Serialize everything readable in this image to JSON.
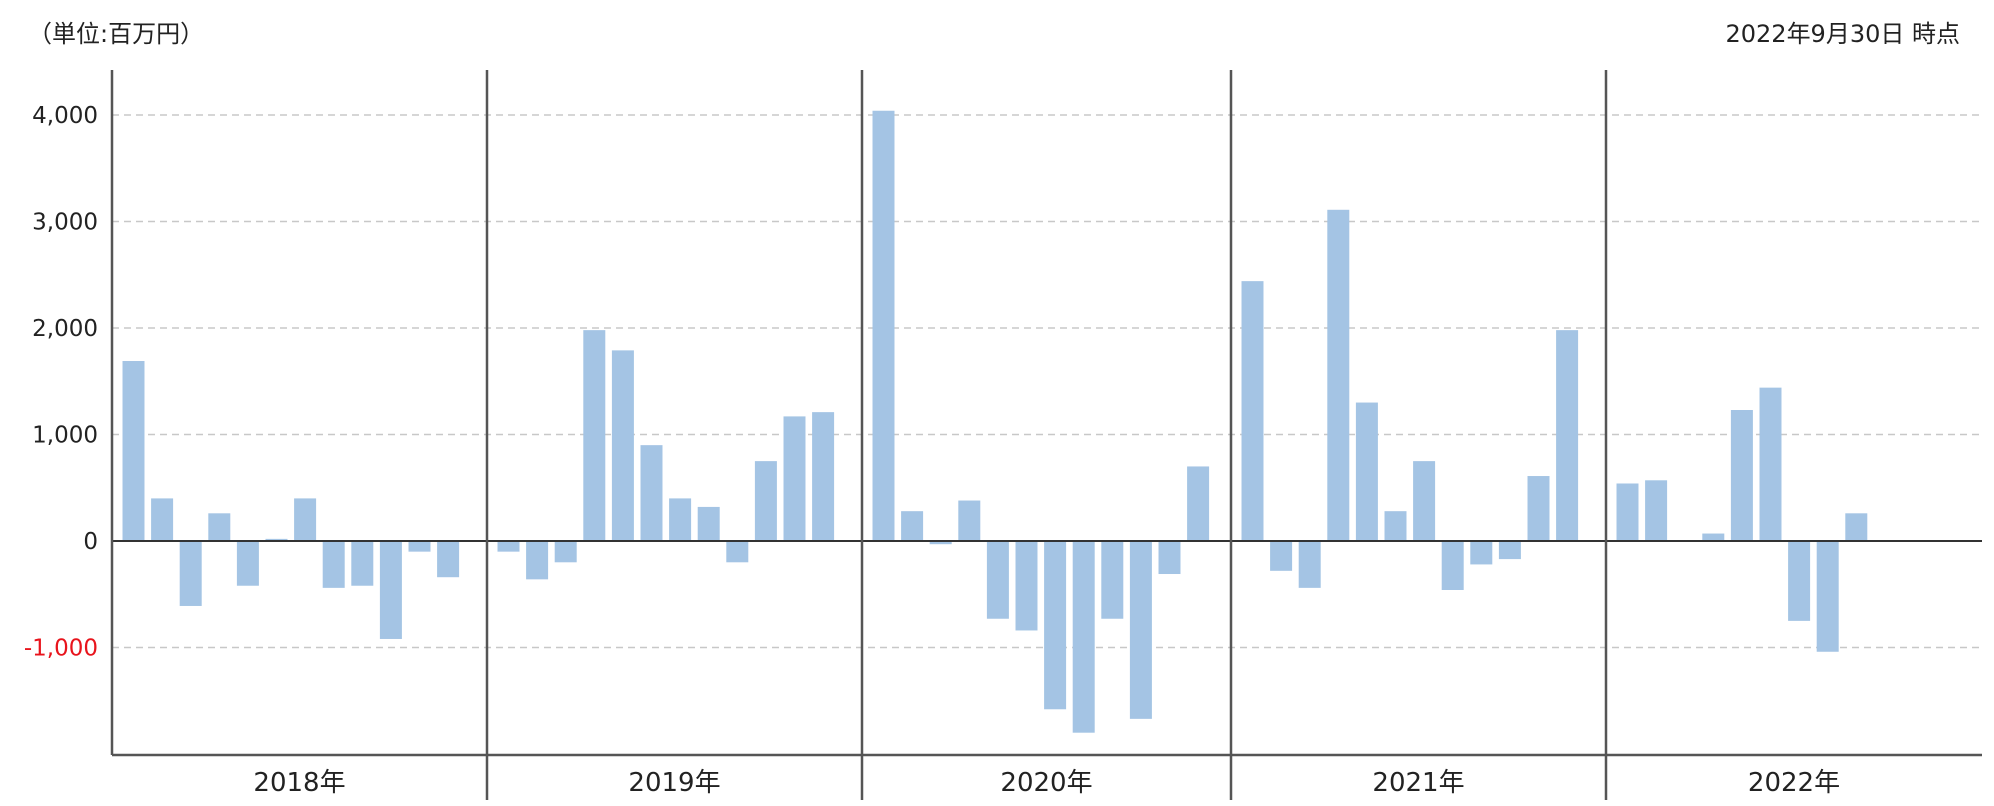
{
  "header": {
    "unit_label": "（単位:百万円）",
    "as_of_label": "2022年9月30日 時点"
  },
  "colors": {
    "bar": "#a4c4e4",
    "axis": "#555555",
    "grid": "#c8c8c8",
    "negative_tick": "#e8141c",
    "zero_line": "#333333"
  },
  "chart_data": {
    "type": "bar",
    "title": "",
    "xlabel": "",
    "ylabel": "",
    "unit": "百万円",
    "ylim": [
      -2000,
      4400
    ],
    "yticks": [
      {
        "value": 4000,
        "label": "4,000"
      },
      {
        "value": 3000,
        "label": "3,000"
      },
      {
        "value": 2000,
        "label": "2,000"
      },
      {
        "value": 1000,
        "label": "1,000"
      },
      {
        "value": 0,
        "label": "0"
      },
      {
        "value": -1000,
        "label": "-1,000"
      }
    ],
    "grid": true,
    "years": [
      {
        "label": "2018年",
        "values": [
          1690,
          400,
          -610,
          260,
          -420,
          20,
          400,
          -440,
          -420,
          -920,
          -100,
          -340
        ]
      },
      {
        "label": "2019年",
        "values": [
          -100,
          -360,
          -200,
          1980,
          1790,
          900,
          400,
          320,
          -200,
          750,
          1170,
          1210
        ]
      },
      {
        "label": "2020年",
        "values": [
          4040,
          280,
          -30,
          380,
          -730,
          -840,
          -1580,
          -1800,
          -730,
          -1670,
          -310,
          700
        ]
      },
      {
        "label": "2021年",
        "values": [
          2440,
          -280,
          -440,
          3110,
          1300,
          280,
          750,
          -460,
          -220,
          -170,
          610,
          1980
        ]
      },
      {
        "label": "2022年",
        "values": [
          540,
          570,
          0,
          70,
          1230,
          1440,
          -750,
          -1040,
          260
        ]
      }
    ]
  }
}
